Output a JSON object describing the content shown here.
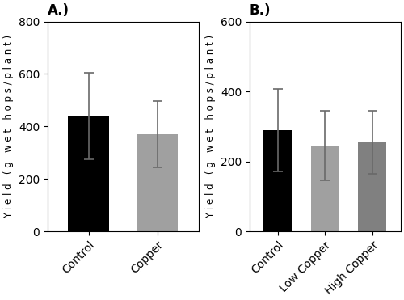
{
  "chart_data": [
    {
      "type": "bar",
      "title": "A.)",
      "categories": [
        "Control",
        "Copper"
      ],
      "values": [
        440,
        370
      ],
      "errors": [
        165,
        125
      ],
      "colors": [
        "#000000",
        "#a0a0a0"
      ],
      "ylim": [
        0,
        800
      ],
      "yticks": [
        0,
        200,
        400,
        600,
        800
      ],
      "y_label": "Y i e l d   ( g   w e t   h o p s / p l a n t )"
    },
    {
      "type": "bar",
      "title": "B.)",
      "categories": [
        "Control",
        "Low Copper",
        "High Copper"
      ],
      "values": [
        290,
        245,
        255
      ],
      "errors": [
        118,
        100,
        90
      ],
      "colors": [
        "#000000",
        "#a0a0a0",
        "#808080"
      ],
      "ylim": [
        0,
        600
      ],
      "yticks": [
        0,
        200,
        400,
        600
      ],
      "y_label": "Y i e l d   ( g   w e t   h o p s / p l a n t )"
    }
  ]
}
